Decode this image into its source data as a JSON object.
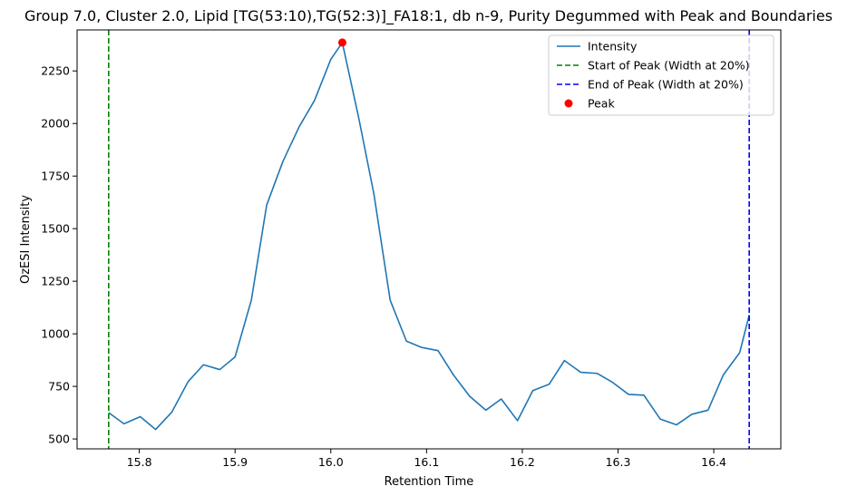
{
  "chart_data": {
    "type": "line",
    "title": "Group 7.0, Cluster 2.0, Lipid [TG(53:10),TG(52:3)]_FA18:1, db n-9, Purity Degummed with Peak and Boundaries",
    "xlabel": "Retention Time",
    "ylabel": "OzESI Intensity",
    "xlim": [
      15.735,
      16.47
    ],
    "ylim": [
      453,
      2445
    ],
    "grid": false,
    "legend_position": "upper right",
    "xticks": [
      15.8,
      15.9,
      16.0,
      16.1,
      16.2,
      16.3,
      16.4
    ],
    "xtick_labels": [
      "15.8",
      "15.9",
      "16.0",
      "16.1",
      "16.2",
      "16.3",
      "16.4"
    ],
    "yticks": [
      500,
      750,
      1000,
      1250,
      1500,
      1750,
      2000,
      2250
    ],
    "ytick_labels": [
      "500",
      "750",
      "1000",
      "1250",
      "1500",
      "1750",
      "2000",
      "2250"
    ],
    "series": [
      {
        "name": "Intensity",
        "color": "#1f77b4",
        "style": "solid",
        "x": [
          15.768,
          15.784,
          15.801,
          15.817,
          15.834,
          15.851,
          15.867,
          15.884,
          15.9,
          15.917,
          15.933,
          15.95,
          15.967,
          15.983,
          16.0,
          16.012,
          16.029,
          16.045,
          16.062,
          16.079,
          16.095,
          16.112,
          16.128,
          16.145,
          16.162,
          16.178,
          16.195,
          16.211,
          16.228,
          16.244,
          16.261,
          16.278,
          16.294,
          16.311,
          16.327,
          16.344,
          16.361,
          16.377,
          16.394,
          16.41,
          16.427,
          16.437
        ],
        "y": [
          625,
          572,
          606,
          545,
          628,
          773,
          853,
          830,
          890,
          1160,
          1612,
          1820,
          1985,
          2110,
          2305,
          2385,
          2030,
          1665,
          1160,
          965,
          935,
          920,
          805,
          703,
          637,
          690,
          587,
          730,
          760,
          873,
          817,
          812,
          770,
          712,
          708,
          595,
          567,
          617,
          637,
          805,
          910,
          1090
        ]
      },
      {
        "name": "Start of Peak (Width at 20%)",
        "color": "#008000",
        "style": "dashed",
        "vline_x": 15.768
      },
      {
        "name": "End of Peak (Width at 20%)",
        "color": "#0000ff",
        "style": "dashed",
        "vline_x": 16.437
      },
      {
        "name": "Peak",
        "color": "#ff0000",
        "style": "marker",
        "x": [
          16.012
        ],
        "y": [
          2385
        ]
      }
    ]
  }
}
